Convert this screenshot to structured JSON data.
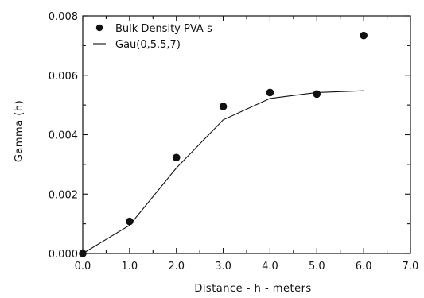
{
  "chart_data": {
    "type": "scatter",
    "xlabel": "Distance - h - meters",
    "ylabel": "Gamma (h)",
    "xlim": [
      0,
      7
    ],
    "ylim": [
      0,
      0.008
    ],
    "x_ticks": [
      "0.0",
      "1.0",
      "2.0",
      "3.0",
      "4.0",
      "5.0",
      "6.0",
      "7.0"
    ],
    "y_ticks": [
      "0.000",
      "0.002",
      "0.004",
      "0.006",
      "0.008"
    ],
    "grid": false,
    "legend_position": "top-left",
    "series": [
      {
        "name": "Bulk Density PVA-s",
        "kind": "scatter",
        "marker": "filled-circle",
        "x": [
          0.0,
          1.0,
          2.0,
          3.0,
          4.0,
          5.0,
          6.0
        ],
        "y": [
          0.0,
          0.00108,
          0.00323,
          0.00495,
          0.00542,
          0.00537,
          0.00734
        ]
      },
      {
        "name": "Gau(0,5.5,7)",
        "kind": "line",
        "x": [
          0.0,
          1.0,
          2.0,
          3.0,
          4.0,
          5.0,
          6.0
        ],
        "y": [
          0.0,
          0.00095,
          0.00288,
          0.0045,
          0.00522,
          0.00542,
          0.00548
        ]
      }
    ]
  }
}
